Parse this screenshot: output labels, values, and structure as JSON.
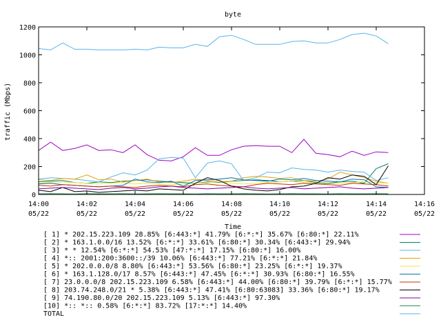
{
  "chart_data": {
    "type": "line",
    "title": "byte",
    "xlabel": "Time",
    "ylabel": "traffic (Mbps)",
    "ylim": [
      0,
      1200
    ],
    "yticks": [
      "0",
      "200",
      "400",
      "600",
      "800",
      "1000",
      "1200"
    ],
    "xlim_minutes": [
      0,
      16
    ],
    "xticks": [
      {
        "time": "14:00",
        "date": "05/22"
      },
      {
        "time": "14:02",
        "date": "05/22"
      },
      {
        "time": "14:04",
        "date": "05/22"
      },
      {
        "time": "14:06",
        "date": "05/22"
      },
      {
        "time": "14:08",
        "date": "05/22"
      },
      {
        "time": "14:10",
        "date": "05/22"
      },
      {
        "time": "14:12",
        "date": "05/22"
      },
      {
        "time": "14:14",
        "date": "05/22"
      },
      {
        "time": "14:16",
        "date": "05/22"
      }
    ],
    "legend_position": "bottom",
    "x_minutes": [
      0,
      0.5,
      1,
      1.5,
      2,
      2.5,
      3,
      3.5,
      4,
      4.5,
      5,
      5.5,
      6,
      6.5,
      7,
      7.5,
      8,
      8.5,
      9,
      9.5,
      10,
      10.5,
      11,
      11.5,
      12,
      12.5,
      13,
      13.5,
      14,
      14.5
    ],
    "series": [
      {
        "name": "[ 1] * 202.15.223.109 28.85%  [6:443:*] 41.79% [6:*:*] 35.67% [6:80:*] 22.11%",
        "color": "#a000c0",
        "values": [
          315,
          375,
          315,
          330,
          355,
          315,
          320,
          300,
          355,
          285,
          245,
          240,
          270,
          335,
          280,
          280,
          320,
          345,
          350,
          345,
          345,
          300,
          395,
          295,
          285,
          270,
          310,
          280,
          305,
          300
        ]
      },
      {
        "name": "[ 2] * 163.1.0.0/16 13.52%  [6:*:*] 33.61% [6:80:*] 30.34% [6:443:*] 29.94%",
        "color": "#008060",
        "values": [
          90,
          95,
          100,
          85,
          80,
          90,
          85,
          95,
          100,
          105,
          95,
          90,
          85,
          80,
          90,
          85,
          95,
          100,
          105,
          100,
          90,
          95,
          100,
          85,
          80,
          90,
          95,
          80,
          185,
          220
        ]
      },
      {
        "name": "[ 3] * * 12.54%  [6:*:*] 54.53% [47:*:*] 17.15% [6:80:*] 16.00%",
        "color": "#56b4e9",
        "values": [
          110,
          120,
          115,
          110,
          100,
          90,
          125,
          155,
          140,
          175,
          255,
          265,
          260,
          120,
          225,
          240,
          220,
          100,
          120,
          160,
          155,
          190,
          180,
          175,
          160,
          175,
          165,
          160,
          100,
          120
        ]
      },
      {
        "name": "[ 4] *:: 2001:200:3600::/39 10.06%  [6:443:*] 77.21% [6:*:*] 21.84%",
        "color": "#e6a000",
        "values": [
          105,
          100,
          115,
          110,
          140,
          105,
          110,
          90,
          100,
          110,
          90,
          85,
          95,
          110,
          100,
          90,
          95,
          120,
          130,
          125,
          115,
          120,
          100,
          95,
          110,
          160,
          140,
          120,
          95,
          80
        ]
      },
      {
        "name": "[ 5] * 202.0.0.0/8 8.80%  [6:443:*] 53.56% [6:80:*] 23.25% [6:*:*] 19.37%",
        "color": "#f0e442",
        "values": [
          80,
          85,
          90,
          85,
          80,
          75,
          80,
          85,
          75,
          80,
          75,
          70,
          75,
          80,
          85,
          90,
          80,
          75,
          80,
          85,
          90,
          95,
          85,
          80,
          75,
          80,
          85,
          90,
          85,
          80
        ]
      },
      {
        "name": "[ 6] * 163.1.128.0/17 8.57%  [6:443:*] 47.45% [6:*:*] 30.93% [6:80:*] 16.55%",
        "color": "#0072b2",
        "values": [
          75,
          80,
          70,
          65,
          60,
          55,
          60,
          65,
          110,
          90,
          85,
          95,
          60,
          100,
          105,
          110,
          120,
          105,
          100,
          95,
          110,
          105,
          115,
          100,
          95,
          90,
          110,
          105,
          55,
          50
        ]
      },
      {
        "name": "[ 7] 23.0.0.0/8 202.15.223.109 6.58%  [6:443:*] 44.00% [6:80:*] 39.79% [6:*:*] 15.77%",
        "color": "#c03000",
        "values": [
          65,
          60,
          70,
          65,
          60,
          55,
          60,
          55,
          50,
          60,
          65,
          60,
          55,
          70,
          75,
          65,
          60,
          55,
          70,
          80,
          75,
          70,
          80,
          75,
          70,
          65,
          80,
          75,
          70,
          60
        ]
      },
      {
        "name": "[ 8] 203.74.248.0/21 * 5.38%  [6:443:*] 47.41% [6:80:63083] 33.36% [6:80:*] 19.17%",
        "color": "#000000",
        "values": [
          30,
          20,
          50,
          20,
          25,
          15,
          20,
          25,
          30,
          25,
          40,
          35,
          30,
          80,
          120,
          100,
          60,
          40,
          30,
          25,
          35,
          55,
          60,
          80,
          120,
          110,
          140,
          130,
          70,
          205
        ]
      },
      {
        "name": "[ 9] 74.190.80.0/20 202.15.223.109 5.13%  [6:443:*] 97.30%",
        "color": "#8000a0",
        "values": [
          40,
          45,
          50,
          45,
          40,
          35,
          45,
          50,
          40,
          45,
          55,
          60,
          50,
          45,
          40,
          45,
          50,
          55,
          45,
          40,
          45,
          50,
          40,
          45,
          50,
          55,
          45,
          40,
          45,
          50
        ]
      },
      {
        "name": "[10] *:: *:: 0.58%  [6:*:*] 83.72% [17:*:*] 14.40%",
        "color": "#2e8b57",
        "values": [
          5,
          6,
          5,
          4,
          6,
          5,
          5,
          6,
          4,
          5,
          6,
          5,
          5,
          4,
          6,
          5,
          5,
          6,
          5,
          4,
          5,
          6,
          5,
          5,
          4,
          6,
          5,
          5,
          6,
          5
        ]
      },
      {
        "name": "TOTAL",
        "color": "#56b4e9",
        "values": [
          1045,
          1035,
          1085,
          1040,
          1040,
          1035,
          1035,
          1035,
          1040,
          1035,
          1055,
          1050,
          1050,
          1075,
          1060,
          1130,
          1140,
          1110,
          1075,
          1075,
          1075,
          1095,
          1100,
          1085,
          1085,
          1110,
          1145,
          1155,
          1135,
          1080
        ]
      }
    ]
  }
}
